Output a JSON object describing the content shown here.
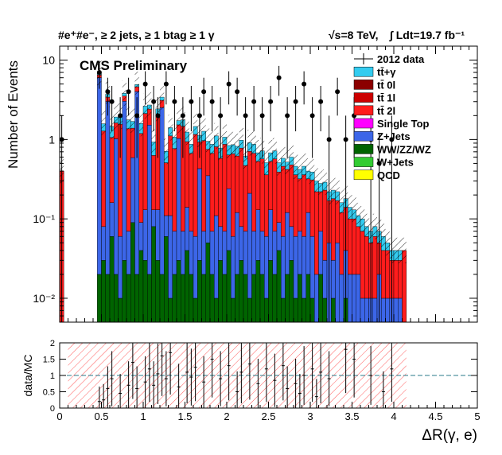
{
  "header": {
    "selection": "#e⁺#e⁻, ≥ 2 jets, ≥ 1 btag ≥ 1 γ",
    "energy": "√s=8 TeV,",
    "lumi": "∫ Ldt=19.7 fb⁻¹"
  },
  "chart_data": [
    {
      "type": "bar",
      "stacked": true,
      "title": "CMS Preliminary",
      "ylabel": "Number of Events",
      "xlabel": "",
      "y_scale": "log",
      "ylim": [
        0.005,
        15
      ],
      "xlim": [
        0,
        5
      ],
      "y_ticks": [
        {
          "value": 0.01,
          "label": "10⁻²"
        },
        {
          "value": 0.1,
          "label": "10⁻¹"
        },
        {
          "value": 1,
          "label": "1"
        },
        {
          "value": 10,
          "label": "10"
        }
      ],
      "bin_edges_note": "100 bins of width 0.05",
      "bins_x": [
        0.0,
        0.45,
        0.5,
        0.55,
        0.6,
        0.65,
        0.7,
        0.75,
        0.8,
        0.85,
        0.9,
        0.95,
        1.0,
        1.05,
        1.1,
        1.15,
        1.2,
        1.25,
        1.3,
        1.35,
        1.4,
        1.45,
        1.5,
        1.55,
        1.6,
        1.65,
        1.7,
        1.75,
        1.8,
        1.85,
        1.9,
        1.95,
        2.0,
        2.05,
        2.1,
        2.15,
        2.2,
        2.25,
        2.3,
        2.35,
        2.4,
        2.45,
        2.5,
        2.55,
        2.6,
        2.65,
        2.7,
        2.75,
        2.8,
        2.85,
        2.9,
        2.95,
        3.0,
        3.05,
        3.1,
        3.15,
        3.2,
        3.25,
        3.3,
        3.35,
        3.4,
        3.45,
        3.5,
        3.55,
        3.6,
        3.65,
        3.7,
        3.75,
        3.8,
        3.85,
        3.9,
        3.95,
        4.0,
        4.05,
        4.1,
        4.65
      ],
      "series": [
        {
          "name": "WW/ZZ/WZ",
          "color": "#006400",
          "values": [
            0,
            0.02,
            0.03,
            0.02,
            0.06,
            0.02,
            0.01,
            0.03,
            0.02,
            0.09,
            0.02,
            0.04,
            0.03,
            0.02,
            0.08,
            0.03,
            0.02,
            0.06,
            0.01,
            0.02,
            0.03,
            0.02,
            0.04,
            0.02,
            0.01,
            0.03,
            0.02,
            0.05,
            0.02,
            0.01,
            0.03,
            0.02,
            0.04,
            0.01,
            0.02,
            0.03,
            0.02,
            0.01,
            0.02,
            0.03,
            0.02,
            0.01,
            0.03,
            0.02,
            0.04,
            0.01,
            0.02,
            0.03,
            0.01,
            0.02,
            0.01,
            0.02,
            0.01,
            0,
            0.02,
            0.01,
            0,
            0.01,
            0,
            0,
            0.01,
            0,
            0,
            0,
            0,
            0,
            0,
            0,
            0,
            0,
            0,
            0,
            0,
            0,
            0
          ]
        },
        {
          "name": "Z+Jets",
          "color": "#3c66e8",
          "values": [
            0,
            6.0,
            0.05,
            3.0,
            0.1,
            1.0,
            0.05,
            3.0,
            0.05,
            0.5,
            4.0,
            0.05,
            0.1,
            1.5,
            0.05,
            0.1,
            2.5,
            0.05,
            0.1,
            0.05,
            1.0,
            0.05,
            0.1,
            0.05,
            0.05,
            0.4,
            0.05,
            0.3,
            0.05,
            0.1,
            0.05,
            0.05,
            0.2,
            0.05,
            0.1,
            0.05,
            0.05,
            0.2,
            0.05,
            0.1,
            0.05,
            0.05,
            0.1,
            0.05,
            0.05,
            0.05,
            0.1,
            0.05,
            0.05,
            0.05,
            0.05,
            0.1,
            0.05,
            0.02,
            0.05,
            0.02,
            0.05,
            0.02,
            0.05,
            0.02,
            0.03,
            0.02,
            0.02,
            0.02,
            0.01,
            0.01,
            0.01,
            0.01,
            0.02,
            0.01,
            0.01,
            0.01,
            0.01,
            0.01,
            0
          ]
        },
        {
          "name": "tt̄ 2l",
          "color": "#ff1c1c",
          "values": [
            0.4,
            0.5,
            1.2,
            0.4,
            0.9,
            0.6,
            1.5,
            0.5,
            1.3,
            0.8,
            0.6,
            1.1,
            2.0,
            0.9,
            0.5,
            1.8,
            0.6,
            0.4,
            1.0,
            0.7,
            0.5,
            1.4,
            0.8,
            0.6,
            1.1,
            0.5,
            0.9,
            0.4,
            0.6,
            0.7,
            0.5,
            0.8,
            0.4,
            0.6,
            0.5,
            0.7,
            0.4,
            0.5,
            0.6,
            0.4,
            0.5,
            0.3,
            0.4,
            0.5,
            0.3,
            0.4,
            0.3,
            0.4,
            0.3,
            0.25,
            0.3,
            0.2,
            0.25,
            0.2,
            0.15,
            0.2,
            0.12,
            0.15,
            0.12,
            0.1,
            0.1,
            0.08,
            0.08,
            0.06,
            0.06,
            0.05,
            0.04,
            0.05,
            0.03,
            0.03,
            0.03,
            0.02,
            0.02,
            0.02,
            0.04
          ]
        },
        {
          "name": "tt̄+γ",
          "color": "#33ccf0",
          "values": [
            0,
            0.3,
            0.3,
            0.3,
            0.4,
            0.3,
            0.4,
            0.3,
            0.4,
            0.3,
            0.3,
            0.4,
            0.5,
            0.3,
            0.3,
            0.5,
            0.3,
            0.2,
            0.3,
            0.3,
            0.2,
            0.3,
            0.3,
            0.2,
            0.3,
            0.2,
            0.3,
            0.2,
            0.2,
            0.3,
            0.2,
            0.2,
            0.2,
            0.2,
            0.2,
            0.2,
            0.15,
            0.2,
            0.2,
            0.15,
            0.15,
            0.15,
            0.15,
            0.15,
            0.12,
            0.12,
            0.1,
            0.12,
            0.1,
            0.1,
            0.1,
            0.08,
            0.08,
            0.08,
            0.06,
            0.06,
            0.05,
            0.05,
            0.05,
            0.04,
            0.04,
            0.04,
            0.03,
            0.03,
            0.03,
            0.02,
            0.02,
            0.02,
            0.02,
            0.02,
            0.01,
            0.01,
            0.01,
            0.01,
            0
          ]
        }
      ],
      "data_points": [
        {
          "x": 0.025,
          "y": 1.0
        },
        {
          "x": 0.475,
          "y": 7.0
        },
        {
          "x": 0.575,
          "y": 4.0
        },
        {
          "x": 0.625,
          "y": 3.0
        },
        {
          "x": 0.725,
          "y": 2.0
        },
        {
          "x": 0.825,
          "y": 4.0
        },
        {
          "x": 0.925,
          "y": 2.0
        },
        {
          "x": 1.025,
          "y": 5.0
        },
        {
          "x": 1.125,
          "y": 3.0
        },
        {
          "x": 1.175,
          "y": 2.0
        },
        {
          "x": 1.275,
          "y": 5.0
        },
        {
          "x": 1.375,
          "y": 3.0
        },
        {
          "x": 1.475,
          "y": 2.0
        },
        {
          "x": 1.575,
          "y": 3.0
        },
        {
          "x": 1.675,
          "y": 2.0
        },
        {
          "x": 1.725,
          "y": 4.0
        },
        {
          "x": 1.825,
          "y": 3.0
        },
        {
          "x": 1.925,
          "y": 2.0
        },
        {
          "x": 2.025,
          "y": 5.0
        },
        {
          "x": 2.125,
          "y": 4.0
        },
        {
          "x": 2.225,
          "y": 2.0
        },
        {
          "x": 2.325,
          "y": 3.0
        },
        {
          "x": 2.425,
          "y": 2.0
        },
        {
          "x": 2.525,
          "y": 3.0
        },
        {
          "x": 2.625,
          "y": 6.0
        },
        {
          "x": 2.725,
          "y": 2.0
        },
        {
          "x": 2.825,
          "y": 3.0
        },
        {
          "x": 2.925,
          "y": 5.0
        },
        {
          "x": 3.025,
          "y": 2.0
        },
        {
          "x": 3.125,
          "y": 3.0
        },
        {
          "x": 3.225,
          "y": 1.0
        },
        {
          "x": 3.325,
          "y": 4.0
        },
        {
          "x": 3.425,
          "y": 1.0
        },
        {
          "x": 3.525,
          "y": 2.0
        },
        {
          "x": 3.725,
          "y": 1.0
        },
        {
          "x": 3.825,
          "y": 0.5
        },
        {
          "x": 3.975,
          "y": 1.0
        }
      ],
      "legend": {
        "placement": "top-right",
        "entries": [
          {
            "label": "2012 data",
            "kind": "marker",
            "color": "#000000"
          },
          {
            "label": "tt̄+γ",
            "kind": "box",
            "color": "#33ccf0"
          },
          {
            "label": "tt̄ 0l",
            "kind": "box",
            "color": "#8b0000"
          },
          {
            "label": "tt̄ 1l",
            "kind": "box",
            "color": "#cc0000"
          },
          {
            "label": "tt̄ 2l",
            "kind": "box",
            "color": "#ff1c1c"
          },
          {
            "label": "Single Top",
            "kind": "box",
            "color": "#ff00ff"
          },
          {
            "label": "Z+Jets",
            "kind": "box",
            "color": "#3c66e8"
          },
          {
            "label": "WW/ZZ/WZ",
            "kind": "box",
            "color": "#006400"
          },
          {
            "label": "W+Jets",
            "kind": "box",
            "color": "#33cc33"
          },
          {
            "label": "QCD",
            "kind": "box",
            "color": "#ffff00"
          }
        ]
      }
    },
    {
      "type": "scatter",
      "ylabel": "data/MC",
      "xlabel": "ΔR(γ, e)",
      "ylim": [
        0,
        2
      ],
      "xlim": [
        0,
        5
      ],
      "x_ticks": [
        0,
        0.5,
        1,
        1.5,
        2,
        2.5,
        3,
        3.5,
        4,
        4.5,
        5
      ],
      "x_tick_labels": [
        "0",
        "0.5",
        "1",
        "1.5",
        "2",
        "2.5",
        "3",
        "3.5",
        "4",
        "4.5",
        "5"
      ],
      "y_ticks": [
        0,
        0.5,
        1,
        1.5,
        2
      ],
      "y_tick_labels": [
        "0",
        "0.5",
        "1",
        "1.5",
        "2"
      ],
      "reference_line": 1,
      "uncertainty_band": [
        0.1,
        4.15
      ],
      "points": [
        {
          "x": 0.475,
          "y": 0.2
        },
        {
          "x": 0.525,
          "y": 0.25
        },
        {
          "x": 0.575,
          "y": 0.6
        },
        {
          "x": 0.625,
          "y": 0.9
        },
        {
          "x": 0.725,
          "y": 0.45
        },
        {
          "x": 0.825,
          "y": 0.7
        },
        {
          "x": 0.875,
          "y": 1.4
        },
        {
          "x": 0.925,
          "y": 0.6
        },
        {
          "x": 1.025,
          "y": 0.8
        },
        {
          "x": 1.075,
          "y": 1.2
        },
        {
          "x": 1.125,
          "y": 0.7
        },
        {
          "x": 1.175,
          "y": 1.05
        },
        {
          "x": 1.225,
          "y": 1.6
        },
        {
          "x": 1.275,
          "y": 0.9
        },
        {
          "x": 1.325,
          "y": 1.7
        },
        {
          "x": 1.425,
          "y": 0.65
        },
        {
          "x": 1.525,
          "y": 1.1
        },
        {
          "x": 1.575,
          "y": 0.95
        },
        {
          "x": 1.625,
          "y": 1.25
        },
        {
          "x": 1.725,
          "y": 0.8
        },
        {
          "x": 1.825,
          "y": 1.5
        },
        {
          "x": 1.925,
          "y": 0.9
        },
        {
          "x": 2.025,
          "y": 1.3
        },
        {
          "x": 2.125,
          "y": 0.5
        },
        {
          "x": 2.175,
          "y": 1.1
        },
        {
          "x": 2.275,
          "y": 1.35
        },
        {
          "x": 2.375,
          "y": 0.75
        },
        {
          "x": 2.475,
          "y": 1.2
        },
        {
          "x": 2.575,
          "y": 0.85
        },
        {
          "x": 2.675,
          "y": 1.3
        },
        {
          "x": 2.725,
          "y": 0.6
        },
        {
          "x": 2.825,
          "y": 0.75
        },
        {
          "x": 2.875,
          "y": 0.45
        },
        {
          "x": 2.925,
          "y": 1.0
        },
        {
          "x": 3.025,
          "y": 1.2
        },
        {
          "x": 3.075,
          "y": 0.35
        },
        {
          "x": 3.125,
          "y": 1.1
        },
        {
          "x": 3.225,
          "y": 0.9
        },
        {
          "x": 3.425,
          "y": 1.8
        },
        {
          "x": 3.525,
          "y": 1.5
        },
        {
          "x": 3.725,
          "y": 1.0
        },
        {
          "x": 3.875,
          "y": 0.5
        },
        {
          "x": 3.975,
          "y": 1.2
        }
      ]
    }
  ]
}
